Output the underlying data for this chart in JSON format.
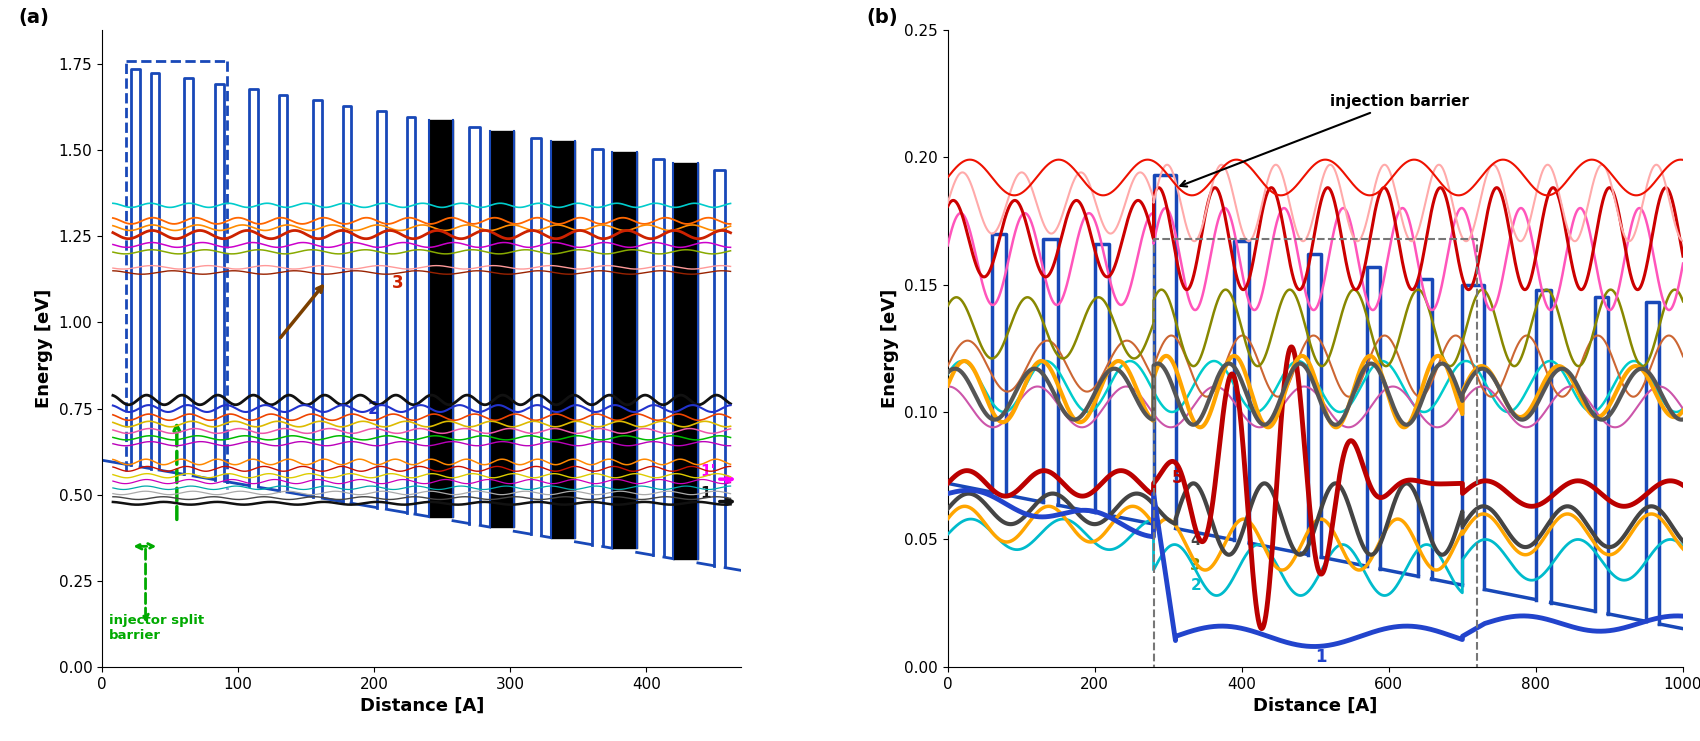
{
  "fig_width": 17.0,
  "fig_height": 7.41,
  "panel_a": {
    "xlabel": "Distance [A]",
    "ylabel": "Energy [eV]",
    "xlim": [
      0,
      470
    ],
    "ylim": [
      0,
      1.85
    ],
    "label": "(a)"
  },
  "panel_b": {
    "xlabel": "Distance [A]",
    "ylabel": "Energy [eV]",
    "xlim": [
      0,
      1000
    ],
    "ylim": [
      0,
      0.25
    ],
    "label": "(b)"
  },
  "barrier_blue": "#1848B8",
  "barrier_black": "#000000",
  "green_annot": "#00AA00",
  "brown_arrow": "#7B3F00",
  "magenta_arrow": "#FF00FF",
  "panel_a_upper_levels": [
    {
      "e0": 1.34,
      "amp": 0.006,
      "freq": 0.22,
      "phase": 0.0,
      "color": "#00CCCC",
      "lw": 1.2
    },
    {
      "e0": 1.295,
      "amp": 0.009,
      "freq": 0.2,
      "phase": 0.4,
      "color": "#FF6600",
      "lw": 1.3
    },
    {
      "e0": 1.275,
      "amp": 0.008,
      "freq": 0.19,
      "phase": 0.8,
      "color": "#FF8C00",
      "lw": 1.2
    },
    {
      "e0": 1.255,
      "amp": 0.012,
      "freq": 0.18,
      "phase": 1.2,
      "color": "#CC2200",
      "lw": 2.0
    },
    {
      "e0": 1.225,
      "amp": 0.007,
      "freq": 0.17,
      "phase": 1.6,
      "color": "#CC00CC",
      "lw": 1.1
    },
    {
      "e0": 1.205,
      "amp": 0.006,
      "freq": 0.16,
      "phase": 2.0,
      "color": "#88AA00",
      "lw": 1.1
    },
    {
      "e0": 1.16,
      "amp": 0.005,
      "freq": 0.15,
      "phase": 2.4,
      "color": "#FF9999",
      "lw": 1.0
    },
    {
      "e0": 1.145,
      "amp": 0.005,
      "freq": 0.14,
      "phase": 0.6,
      "color": "#992200",
      "lw": 1.0
    }
  ],
  "panel_a_middle_levels": [
    {
      "e0": 0.775,
      "amp": 0.014,
      "freq": 0.24,
      "phase": 0.0,
      "color": "#111111",
      "lw": 2.0
    },
    {
      "e0": 0.75,
      "amp": 0.01,
      "freq": 0.22,
      "phase": 0.3,
      "color": "#2233CC",
      "lw": 1.5
    },
    {
      "e0": 0.725,
      "amp": 0.009,
      "freq": 0.21,
      "phase": 0.6,
      "color": "#EE4400",
      "lw": 1.2
    },
    {
      "e0": 0.705,
      "amp": 0.008,
      "freq": 0.2,
      "phase": 0.9,
      "color": "#DDBB00",
      "lw": 1.2
    },
    {
      "e0": 0.685,
      "amp": 0.007,
      "freq": 0.19,
      "phase": 1.2,
      "color": "#EE55AA",
      "lw": 1.1
    },
    {
      "e0": 0.665,
      "amp": 0.006,
      "freq": 0.18,
      "phase": 1.5,
      "color": "#00BB00",
      "lw": 1.1
    },
    {
      "e0": 0.648,
      "amp": 0.006,
      "freq": 0.17,
      "phase": 1.8,
      "color": "#BB00BB",
      "lw": 1.0
    }
  ],
  "panel_a_lower_levels": [
    {
      "e0": 0.595,
      "amp": 0.008,
      "freq": 0.24,
      "phase": 0.1,
      "color": "#FF8800",
      "lw": 1.1
    },
    {
      "e0": 0.575,
      "amp": 0.007,
      "freq": 0.22,
      "phase": 0.5,
      "color": "#CC1100",
      "lw": 1.0
    },
    {
      "e0": 0.555,
      "amp": 0.006,
      "freq": 0.21,
      "phase": 0.9,
      "color": "#DDCC00",
      "lw": 1.0
    },
    {
      "e0": 0.538,
      "amp": 0.006,
      "freq": 0.2,
      "phase": 1.3,
      "color": "#CC00BB",
      "lw": 0.9
    },
    {
      "e0": 0.52,
      "amp": 0.005,
      "freq": 0.19,
      "phase": 1.7,
      "color": "#00AAAA",
      "lw": 0.9
    },
    {
      "e0": 0.505,
      "amp": 0.005,
      "freq": 0.18,
      "phase": 2.1,
      "color": "#AAAAAA",
      "lw": 0.9
    },
    {
      "e0": 0.49,
      "amp": 0.004,
      "freq": 0.17,
      "phase": 0.2,
      "color": "#444444",
      "lw": 1.0
    },
    {
      "e0": 0.475,
      "amp": 0.004,
      "freq": 0.16,
      "phase": 0.6,
      "color": "#111111",
      "lw": 1.8
    }
  ]
}
